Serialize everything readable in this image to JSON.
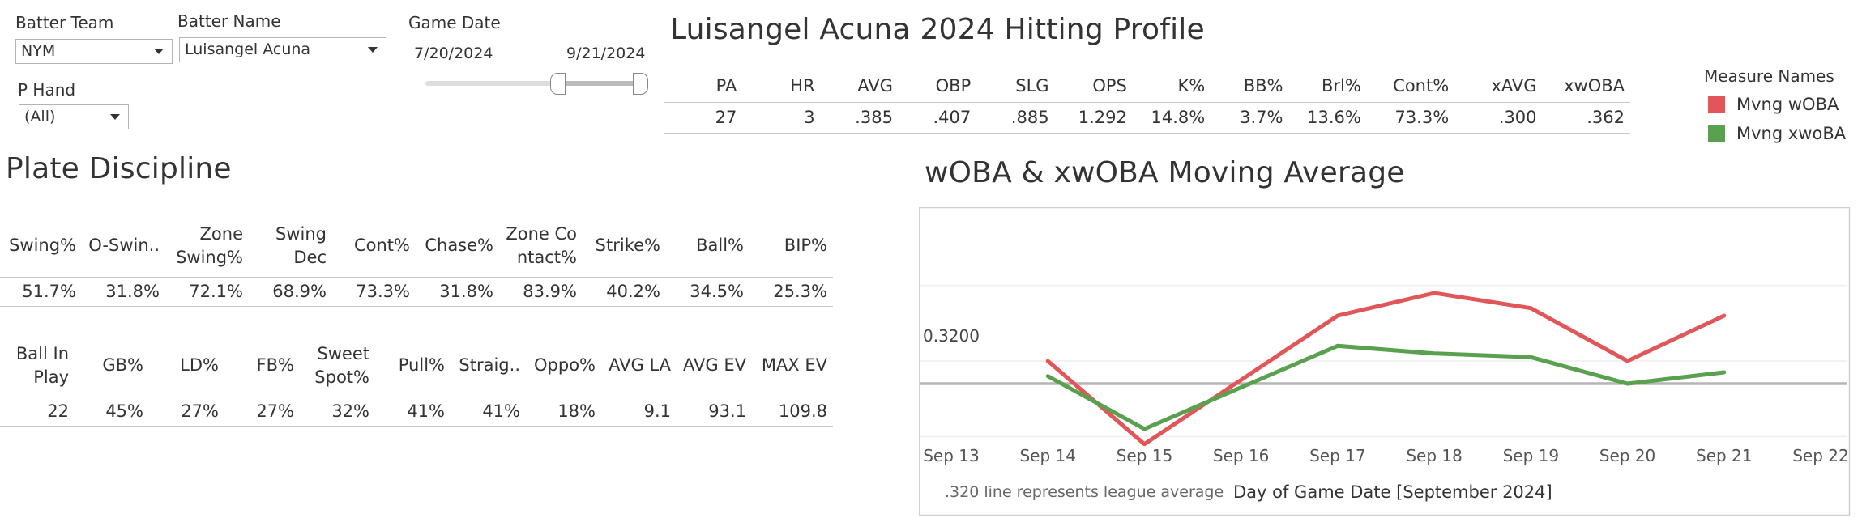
{
  "filters": {
    "batter_team": {
      "label": "Batter Team",
      "value": "NYM"
    },
    "batter_name": {
      "label": "Batter Name",
      "value": "Luisangel Acuna"
    },
    "game_date": {
      "label": "Game Date",
      "start": "7/20/2024",
      "end": "9/21/2024"
    },
    "p_hand": {
      "label": "P Hand",
      "value": "(All)"
    }
  },
  "profile": {
    "title": "Luisangel Acuna 2024 Hitting Profile",
    "headers": [
      "PA",
      "HR",
      "AVG",
      "OBP",
      "SLG",
      "OPS",
      "K%",
      "BB%",
      "Brl%",
      "Cont%",
      "xAVG",
      "xwOBA"
    ],
    "values": [
      "27",
      "3",
      ".385",
      ".407",
      ".885",
      "1.292",
      "14.8%",
      "3.7%",
      "13.6%",
      "73.3%",
      ".300",
      ".362"
    ]
  },
  "legend": {
    "title": "Measure Names",
    "items": [
      {
        "label": "Mvng wOBA",
        "color": "#e15759"
      },
      {
        "label": "Mvng xwoBA",
        "color": "#59a14f"
      }
    ]
  },
  "discipline": {
    "title": "Plate Discipline",
    "table1": {
      "headers": [
        "Swing%",
        "O-Swin..",
        "Zone\nSwing%",
        "Swing\nDec",
        "Cont%",
        "Chase%",
        "Zone Co\nntact%",
        "Strike%",
        "Ball%",
        "BIP%"
      ],
      "values": [
        "51.7%",
        "31.8%",
        "72.1%",
        "68.9%",
        "73.3%",
        "31.8%",
        "83.9%",
        "40.2%",
        "34.5%",
        "25.3%"
      ]
    },
    "table2": {
      "headers": [
        "Ball In\nPlay",
        "GB%",
        "LD%",
        "FB%",
        "Sweet\nSpot%",
        "Pull%",
        "Straig..",
        "Oppo%",
        "AVG LA",
        "AVG EV",
        "MAX EV"
      ],
      "values": [
        "22",
        "45%",
        "27%",
        "27%",
        "32%",
        "41%",
        "41%",
        "18%",
        "9.1",
        "93.1",
        "109.8"
      ]
    }
  },
  "moving_chart": {
    "title": "wOBA & xwOBA Moving Average",
    "reference_label": "0.3200",
    "footnote": ".320 line represents league average",
    "xlabel": "Day of Game Date [September 2024]"
  },
  "chart_data": {
    "type": "line",
    "title": "wOBA & xwOBA Moving Average",
    "xlabel": "Day of Game Date [September 2024]",
    "ylabel": "",
    "categories": [
      "Sep 13",
      "Sep 14",
      "Sep 15",
      "Sep 16",
      "Sep 17",
      "Sep 18",
      "Sep 19",
      "Sep 20",
      "Sep 21",
      "Sep 22"
    ],
    "series": [
      {
        "name": "Mvng wOBA",
        "color": "#e15759",
        "x": [
          "Sep 14",
          "Sep 15",
          "Sep 17",
          "Sep 18",
          "Sep 19",
          "Sep 20",
          "Sep 21"
        ],
        "values": [
          0.35,
          0.24,
          0.41,
          0.44,
          0.42,
          0.35,
          0.41
        ]
      },
      {
        "name": "Mvng xwoBA",
        "color": "#59a14f",
        "x": [
          "Sep 14",
          "Sep 15",
          "Sep 17",
          "Sep 18",
          "Sep 19",
          "Sep 20",
          "Sep 21"
        ],
        "values": [
          0.33,
          0.26,
          0.37,
          0.36,
          0.355,
          0.32,
          0.335
        ]
      }
    ],
    "reference_line": 0.32,
    "ylim": [
      0.2,
      0.5
    ],
    "grid": true,
    "legend_position": "top-right"
  }
}
